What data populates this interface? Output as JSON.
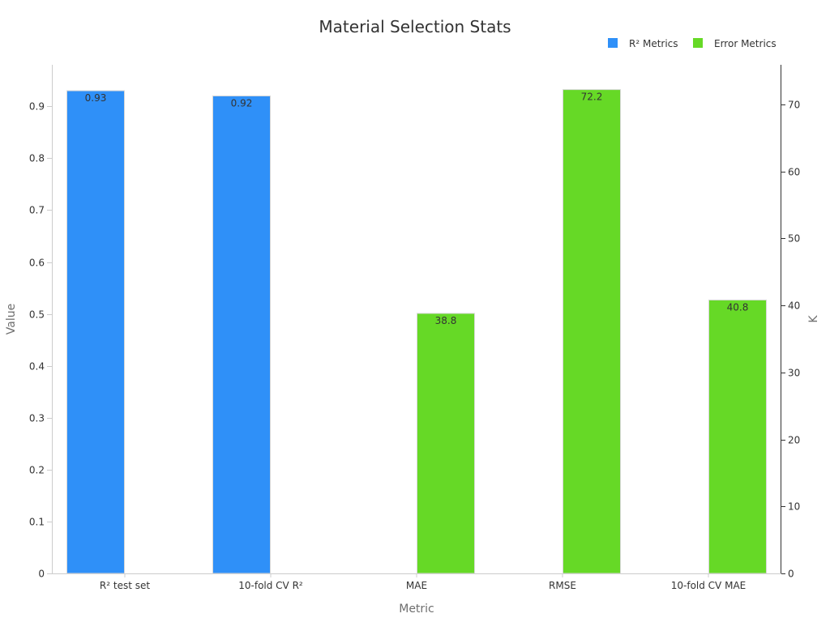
{
  "chart_data": {
    "type": "bar",
    "title": "Material Selection Stats",
    "xlabel": "Metric",
    "ylabel": "Value",
    "y2label": "K",
    "categories": [
      "R² test set",
      "10-fold CV R²",
      "MAE",
      "RMSE",
      "10-fold CV MAE"
    ],
    "ylim": [
      0,
      0.98
    ],
    "y2lim": [
      0,
      75.9
    ],
    "yticks": [
      "0",
      "0.1",
      "0.2",
      "0.3",
      "0.4",
      "0.5",
      "0.6",
      "0.7",
      "0.8",
      "0.9"
    ],
    "y2ticks": [
      "0",
      "10",
      "20",
      "30",
      "40",
      "50",
      "60",
      "70"
    ],
    "legend_position": "top-right",
    "grid": false,
    "series": [
      {
        "name": "R² Metrics",
        "axis": "left",
        "color": "#2f90f8",
        "values": [
          0.93,
          0.92,
          null,
          null,
          null
        ],
        "labels": [
          "0.93",
          "0.92",
          "",
          "",
          ""
        ]
      },
      {
        "name": "Error Metrics",
        "axis": "right",
        "color": "#66d926",
        "values": [
          null,
          null,
          38.8,
          72.2,
          40.8
        ],
        "labels": [
          "",
          "",
          "38.8",
          "72.2",
          "40.8"
        ]
      }
    ]
  }
}
